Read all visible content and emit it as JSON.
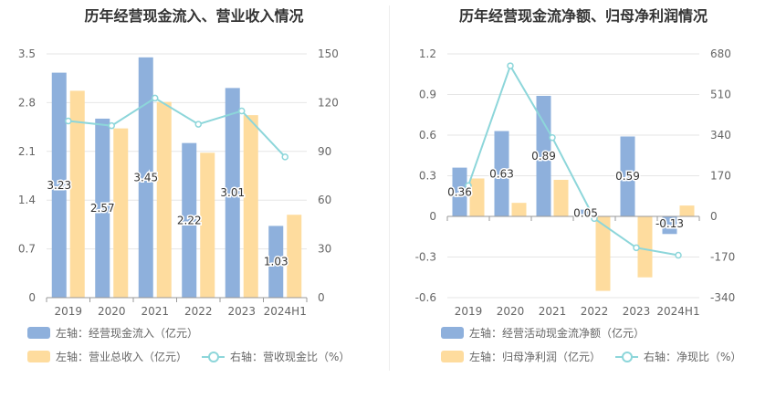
{
  "colors": {
    "blue": "#8eb0dc",
    "orange": "#fedc9e",
    "teal": "#8dd6da"
  },
  "chart_data": [
    {
      "type": "bar",
      "title": "历年经营现金流入、营业收入情况",
      "categories": [
        "2019",
        "2020",
        "2021",
        "2022",
        "2023",
        "2024H1"
      ],
      "left_axis": {
        "min": 0,
        "max": 3.5,
        "ticks": [
          "0",
          "0.7",
          "1.4",
          "2.1",
          "2.8",
          "3.5"
        ]
      },
      "right_axis": {
        "min": 0,
        "max": 150,
        "ticks": [
          "0",
          "30",
          "60",
          "90",
          "120",
          "150"
        ]
      },
      "series": [
        {
          "name": "左轴：经营现金流入（亿元）",
          "kind": "bar",
          "axis": "left",
          "color": "#8eb0dc",
          "values": [
            3.23,
            2.57,
            3.45,
            2.22,
            3.01,
            1.03
          ],
          "labels": [
            "3.23",
            "2.57",
            "3.45",
            "2.22",
            "3.01",
            "1.03"
          ]
        },
        {
          "name": "左轴：营业总收入（亿元）",
          "kind": "bar",
          "axis": "left",
          "color": "#fedc9e",
          "values": [
            2.97,
            2.43,
            2.81,
            2.08,
            2.62,
            1.19
          ]
        },
        {
          "name": "右轴：营收现金比（%）",
          "kind": "line",
          "axis": "right",
          "color": "#8dd6da",
          "values": [
            108.7,
            105.8,
            122.8,
            106.7,
            114.9,
            86.6
          ]
        }
      ],
      "legend": "bottom"
    },
    {
      "type": "bar",
      "title": "历年经营现金流净额、归母净利润情况",
      "categories": [
        "2019",
        "2020",
        "2021",
        "2022",
        "2023",
        "2024H1"
      ],
      "left_axis": {
        "min": -0.6,
        "max": 1.2,
        "ticks": [
          "-0.6",
          "-0.3",
          "0",
          "0.3",
          "0.6",
          "0.9",
          "1.2"
        ]
      },
      "right_axis": {
        "min": -340,
        "max": 680,
        "ticks": [
          "-340",
          "-170",
          "0",
          "170",
          "340",
          "510",
          "680"
        ]
      },
      "series": [
        {
          "name": "左轴：经营活动现金流净额（亿元）",
          "kind": "bar",
          "axis": "left",
          "color": "#8eb0dc",
          "values": [
            0.36,
            0.63,
            0.89,
            0.05,
            0.59,
            -0.13
          ],
          "labels": [
            "0.36",
            "0.63",
            "0.89",
            "0.05",
            "0.59",
            "-0.13"
          ]
        },
        {
          "name": "左轴：归母净利润（亿元）",
          "kind": "bar",
          "axis": "left",
          "color": "#fedc9e",
          "values": [
            0.28,
            0.1,
            0.27,
            -0.55,
            -0.45,
            0.08
          ]
        },
        {
          "name": "右轴：净现比（%）",
          "kind": "line",
          "axis": "right",
          "color": "#8dd6da",
          "values": [
            128.6,
            630,
            329.6,
            -9.1,
            -131.1,
            -162.5
          ]
        }
      ],
      "legend": "bottom"
    }
  ]
}
